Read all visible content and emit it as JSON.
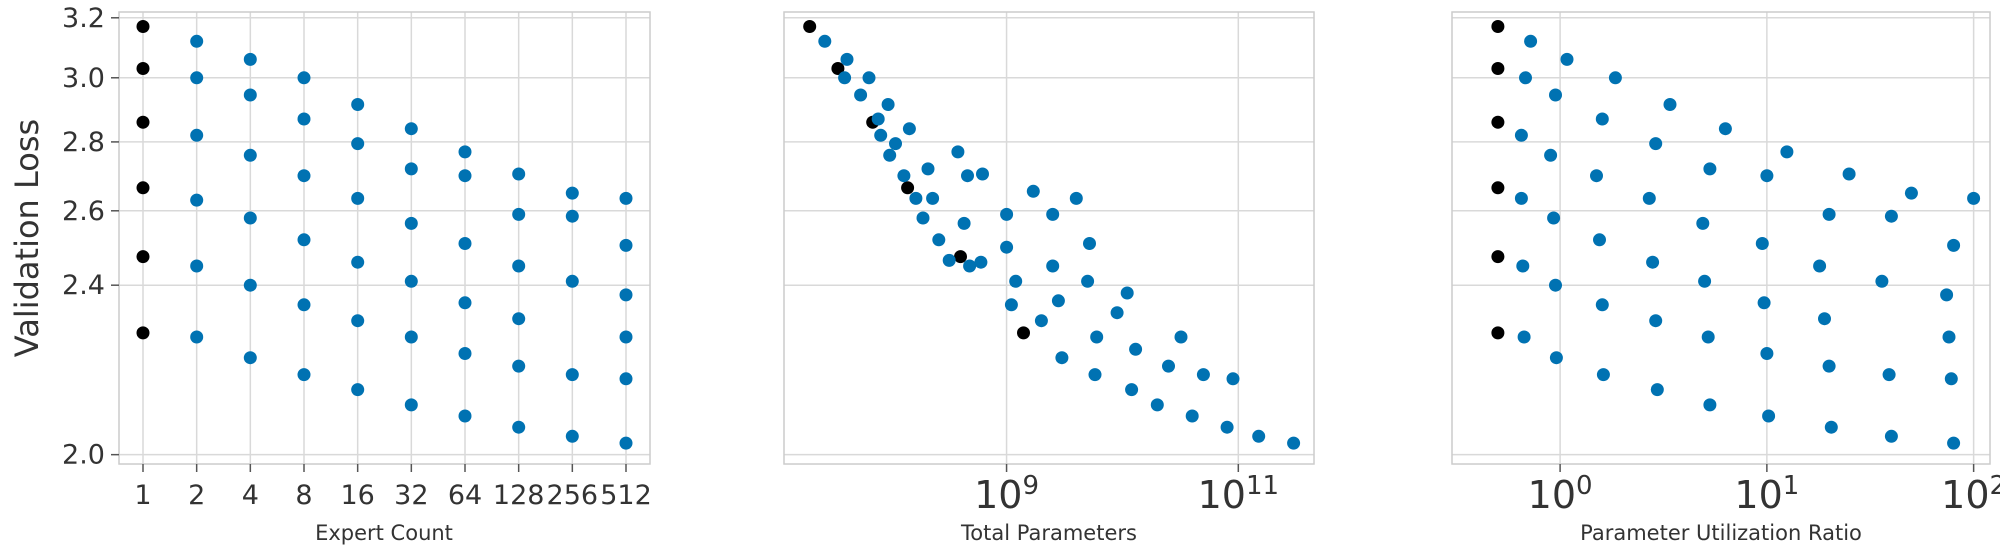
{
  "colors": {
    "series": "#0072b2",
    "highlight": "#000000"
  },
  "chart_data": [
    {
      "type": "scatter",
      "xlabel": "Expert Count",
      "ylabel": "Validation Loss",
      "xscale": "log2",
      "yscale": "log",
      "xlim": [
        1,
        512
      ],
      "ylim": [
        1.98,
        3.22
      ],
      "grid": true,
      "xticks": [
        1,
        2,
        4,
        8,
        16,
        32,
        64,
        128,
        256,
        512
      ],
      "xtick_labels": [
        "1",
        "2",
        "4",
        "8",
        "16",
        "32",
        "64",
        "128",
        "256",
        "512"
      ],
      "yticks": [
        2.0,
        2.4,
        2.6,
        2.8,
        3.0,
        3.2
      ],
      "ytick_labels": [
        "2.0",
        "2.4",
        "2.6",
        "2.8",
        "3.0",
        "3.2"
      ],
      "series": [
        {
          "color": "#000000",
          "points": [
            [
              1,
              3.17
            ],
            [
              1,
              3.03
            ],
            [
              1,
              2.86
            ],
            [
              1,
              2.665
            ],
            [
              1,
              2.475
            ],
            [
              1,
              2.28
            ]
          ]
        },
        {
          "color": "#0072b2",
          "points": [
            [
              2,
              3.12
            ],
            [
              2,
              3.0
            ],
            [
              2,
              2.82
            ],
            [
              2,
              2.63
            ],
            [
              2,
              2.45
            ],
            [
              2,
              2.27
            ],
            [
              4,
              3.06
            ],
            [
              4,
              2.945
            ],
            [
              4,
              2.76
            ],
            [
              4,
              2.58
            ],
            [
              4,
              2.4
            ],
            [
              4,
              2.22
            ],
            [
              8,
              3.0
            ],
            [
              8,
              2.87
            ],
            [
              8,
              2.7
            ],
            [
              8,
              2.52
            ],
            [
              8,
              2.35
            ],
            [
              8,
              2.18
            ],
            [
              16,
              2.915
            ],
            [
              16,
              2.795
            ],
            [
              16,
              2.635
            ],
            [
              16,
              2.46
            ],
            [
              16,
              2.31
            ],
            [
              16,
              2.145
            ],
            [
              32,
              2.84
            ],
            [
              32,
              2.72
            ],
            [
              32,
              2.565
            ],
            [
              32,
              2.41
            ],
            [
              32,
              2.27
            ],
            [
              32,
              2.11
            ],
            [
              64,
              2.77
            ],
            [
              64,
              2.7
            ],
            [
              64,
              2.51
            ],
            [
              64,
              2.355
            ],
            [
              64,
              2.23
            ],
            [
              64,
              2.085
            ],
            [
              128,
              2.705
            ],
            [
              128,
              2.59
            ],
            [
              128,
              2.45
            ],
            [
              128,
              2.315
            ],
            [
              128,
              2.2
            ],
            [
              128,
              2.06
            ],
            [
              256,
              2.65
            ],
            [
              256,
              2.585
            ],
            [
              256,
              2.41
            ],
            [
              256,
              2.18
            ],
            [
              256,
              2.04
            ],
            [
              512,
              2.635
            ],
            [
              512,
              2.505
            ],
            [
              512,
              2.375
            ],
            [
              512,
              2.27
            ],
            [
              512,
              2.17
            ],
            [
              512,
              2.025
            ]
          ]
        }
      ]
    },
    {
      "type": "scatter",
      "xlabel": "Total Parameters",
      "ylabel": "",
      "xscale": "log",
      "yscale": "log",
      "xlim": [
        12000000,
        450000000000
      ],
      "ylim": [
        1.98,
        3.22
      ],
      "grid": true,
      "xticks": [
        1000000000,
        100000000000
      ],
      "xtick_labels": [
        "10^9",
        "10^11"
      ],
      "yticks": [
        2.0,
        2.4,
        2.6,
        2.8,
        3.0,
        3.2
      ],
      "series": [
        {
          "color": "#000000",
          "points": [
            [
              20000000,
              3.17
            ],
            [
              35000000,
              3.03
            ],
            [
              70000000,
              2.86
            ],
            [
              140000000,
              2.665
            ],
            [
              400000000,
              2.475
            ],
            [
              1400000000,
              2.28
            ]
          ]
        },
        {
          "color": "#0072b2",
          "points": [
            [
              27000000,
              3.12
            ],
            [
              42000000,
              3.06
            ],
            [
              40000000,
              3.0
            ],
            [
              55000000,
              2.945
            ],
            [
              65000000,
              3.0
            ],
            [
              78000000,
              2.87
            ],
            [
              95000000,
              2.915
            ],
            [
              82000000,
              2.82
            ],
            [
              98000000,
              2.76
            ],
            [
              110000000,
              2.795
            ],
            [
              130000000,
              2.7
            ],
            [
              145000000,
              2.84
            ],
            [
              165000000,
              2.635
            ],
            [
              190000000,
              2.58
            ],
            [
              210000000,
              2.72
            ],
            [
              230000000,
              2.635
            ],
            [
              260000000,
              2.52
            ],
            [
              320000000,
              2.465
            ],
            [
              380000000,
              2.77
            ],
            [
              460000000,
              2.7
            ],
            [
              430000000,
              2.565
            ],
            [
              480000000,
              2.45
            ],
            [
              600000000,
              2.46
            ],
            [
              620000000,
              2.705
            ],
            [
              1000000000,
              2.59
            ],
            [
              1000000000,
              2.5
            ],
            [
              1100000000,
              2.35
            ],
            [
              1200000000,
              2.41
            ],
            [
              1700000000,
              2.655
            ],
            [
              2000000000,
              2.31
            ],
            [
              2500000000,
              2.59
            ],
            [
              2500000000,
              2.45
            ],
            [
              2800000000,
              2.36
            ],
            [
              3000000000,
              2.22
            ],
            [
              4000000000,
              2.635
            ],
            [
              5000000000,
              2.41
            ],
            [
              5200000000,
              2.51
            ],
            [
              5800000000,
              2.18
            ],
            [
              6000000000,
              2.27
            ],
            [
              9000000000,
              2.33
            ],
            [
              11000000000,
              2.38
            ],
            [
              12000000000,
              2.145
            ],
            [
              13000000000,
              2.24
            ],
            [
              20000000000,
              2.11
            ],
            [
              25000000000,
              2.2
            ],
            [
              32000000000,
              2.27
            ],
            [
              40000000000,
              2.085
            ],
            [
              50000000000,
              2.18
            ],
            [
              80000000000,
              2.06
            ],
            [
              90000000000,
              2.17
            ],
            [
              150000000000,
              2.04
            ],
            [
              300000000000,
              2.025
            ]
          ]
        }
      ]
    },
    {
      "type": "scatter",
      "xlabel": "Parameter Utilization Ratio",
      "ylabel": "",
      "xscale": "log",
      "yscale": "log",
      "xlim": [
        0.3,
        120
      ],
      "ylim": [
        1.98,
        3.22
      ],
      "grid": true,
      "xticks": [
        1,
        10,
        100
      ],
      "xtick_labels": [
        "10^0",
        "10^1",
        "10^2"
      ],
      "yticks": [
        2.0,
        2.4,
        2.6,
        2.8,
        3.0,
        3.2
      ],
      "series": [
        {
          "color": "#000000",
          "points": [
            [
              0.5,
              3.17
            ],
            [
              0.5,
              3.03
            ],
            [
              0.5,
              2.86
            ],
            [
              0.5,
              2.665
            ],
            [
              0.5,
              2.475
            ],
            [
              0.5,
              2.28
            ]
          ]
        },
        {
          "color": "#0072b2",
          "points": [
            [
              0.72,
              3.12
            ],
            [
              1.08,
              3.06
            ],
            [
              1.85,
              3.0
            ],
            [
              3.4,
              2.915
            ],
            [
              6.3,
              2.84
            ],
            [
              12.5,
              2.77
            ],
            [
              25,
              2.705
            ],
            [
              50,
              2.65
            ],
            [
              100,
              2.635
            ],
            [
              0.68,
              3.0
            ],
            [
              0.95,
              2.945
            ],
            [
              1.6,
              2.87
            ],
            [
              2.9,
              2.795
            ],
            [
              5.3,
              2.72
            ],
            [
              10,
              2.7
            ],
            [
              20,
              2.59
            ],
            [
              40,
              2.585
            ],
            [
              80,
              2.505
            ],
            [
              0.65,
              2.82
            ],
            [
              0.9,
              2.76
            ],
            [
              1.5,
              2.7
            ],
            [
              2.7,
              2.635
            ],
            [
              4.9,
              2.565
            ],
            [
              9.5,
              2.51
            ],
            [
              18,
              2.45
            ],
            [
              36,
              2.41
            ],
            [
              74,
              2.375
            ],
            [
              0.65,
              2.635
            ],
            [
              0.93,
              2.58
            ],
            [
              1.55,
              2.52
            ],
            [
              2.8,
              2.46
            ],
            [
              5,
              2.41
            ],
            [
              9.7,
              2.355
            ],
            [
              19,
              2.315
            ],
            [
              76,
              2.27
            ],
            [
              0.66,
              2.45
            ],
            [
              0.95,
              2.4
            ],
            [
              1.6,
              2.35
            ],
            [
              2.9,
              2.31
            ],
            [
              5.2,
              2.27
            ],
            [
              10,
              2.23
            ],
            [
              20,
              2.2
            ],
            [
              39,
              2.18
            ],
            [
              78,
              2.17
            ],
            [
              0.67,
              2.27
            ],
            [
              0.96,
              2.22
            ],
            [
              1.62,
              2.18
            ],
            [
              2.95,
              2.145
            ],
            [
              5.3,
              2.11
            ],
            [
              10.2,
              2.085
            ],
            [
              20.5,
              2.06
            ],
            [
              40,
              2.04
            ],
            [
              80,
              2.025
            ]
          ]
        }
      ]
    }
  ]
}
